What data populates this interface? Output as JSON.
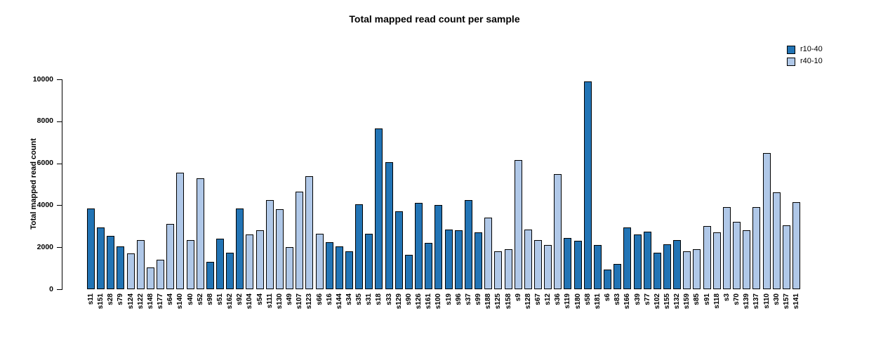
{
  "chart_data": {
    "type": "bar",
    "title": "Total mapped read count per sample",
    "xlabel": "",
    "ylabel": "Total mapped read count",
    "ylim": [
      0,
      10000
    ],
    "yticks": [
      0,
      2000,
      4000,
      6000,
      8000,
      10000
    ],
    "grid": false,
    "legend_position": "top-right",
    "series": [
      {
        "name": "r10-40",
        "color": "#2274b5"
      },
      {
        "name": "r40-10",
        "color": "#b0c8e8"
      }
    ],
    "bars": [
      {
        "label": "s11",
        "value": 3850,
        "series": "r10-40"
      },
      {
        "label": "s151",
        "value": 2950,
        "series": "r10-40"
      },
      {
        "label": "s28",
        "value": 2550,
        "series": "r10-40"
      },
      {
        "label": "s79",
        "value": 2050,
        "series": "r10-40"
      },
      {
        "label": "s124",
        "value": 1700,
        "series": "r40-10"
      },
      {
        "label": "s122",
        "value": 2350,
        "series": "r40-10"
      },
      {
        "label": "s148",
        "value": 1050,
        "series": "r40-10"
      },
      {
        "label": "s177",
        "value": 1400,
        "series": "r40-10"
      },
      {
        "label": "s64",
        "value": 3100,
        "series": "r40-10"
      },
      {
        "label": "s140",
        "value": 5550,
        "series": "r40-10"
      },
      {
        "label": "s40",
        "value": 2350,
        "series": "r40-10"
      },
      {
        "label": "s52",
        "value": 5300,
        "series": "r40-10"
      },
      {
        "label": "s98",
        "value": 1300,
        "series": "r10-40"
      },
      {
        "label": "s51",
        "value": 2400,
        "series": "r10-40"
      },
      {
        "label": "s162",
        "value": 1750,
        "series": "r10-40"
      },
      {
        "label": "s92",
        "value": 3850,
        "series": "r10-40"
      },
      {
        "label": "s104",
        "value": 2600,
        "series": "r40-10"
      },
      {
        "label": "s54",
        "value": 2800,
        "series": "r40-10"
      },
      {
        "label": "s111",
        "value": 4250,
        "series": "r40-10"
      },
      {
        "label": "s130",
        "value": 3800,
        "series": "r40-10"
      },
      {
        "label": "s49",
        "value": 2000,
        "series": "r40-10"
      },
      {
        "label": "s107",
        "value": 4650,
        "series": "r40-10"
      },
      {
        "label": "s123",
        "value": 5400,
        "series": "r40-10"
      },
      {
        "label": "s66",
        "value": 2650,
        "series": "r40-10"
      },
      {
        "label": "s16",
        "value": 2250,
        "series": "r10-40"
      },
      {
        "label": "s144",
        "value": 2050,
        "series": "r10-40"
      },
      {
        "label": "s34",
        "value": 1800,
        "series": "r10-40"
      },
      {
        "label": "s35",
        "value": 4050,
        "series": "r10-40"
      },
      {
        "label": "s31",
        "value": 2650,
        "series": "r10-40"
      },
      {
        "label": "s18",
        "value": 7650,
        "series": "r10-40"
      },
      {
        "label": "s33",
        "value": 6050,
        "series": "r10-40"
      },
      {
        "label": "s129",
        "value": 3700,
        "series": "r10-40"
      },
      {
        "label": "s90",
        "value": 1650,
        "series": "r10-40"
      },
      {
        "label": "s126",
        "value": 4100,
        "series": "r10-40"
      },
      {
        "label": "s161",
        "value": 2200,
        "series": "r10-40"
      },
      {
        "label": "s100",
        "value": 4000,
        "series": "r10-40"
      },
      {
        "label": "s19",
        "value": 2850,
        "series": "r10-40"
      },
      {
        "label": "s96",
        "value": 2800,
        "series": "r10-40"
      },
      {
        "label": "s37",
        "value": 4250,
        "series": "r10-40"
      },
      {
        "label": "s99",
        "value": 2700,
        "series": "r10-40"
      },
      {
        "label": "s188",
        "value": 3400,
        "series": "r40-10"
      },
      {
        "label": "s125",
        "value": 1800,
        "series": "r40-10"
      },
      {
        "label": "s158",
        "value": 1900,
        "series": "r40-10"
      },
      {
        "label": "s9",
        "value": 6150,
        "series": "r40-10"
      },
      {
        "label": "s128",
        "value": 2850,
        "series": "r40-10"
      },
      {
        "label": "s67",
        "value": 2350,
        "series": "r40-10"
      },
      {
        "label": "s12",
        "value": 2100,
        "series": "r40-10"
      },
      {
        "label": "s36",
        "value": 5500,
        "series": "r40-10"
      },
      {
        "label": "s119",
        "value": 2450,
        "series": "r10-40"
      },
      {
        "label": "s180",
        "value": 2300,
        "series": "r10-40"
      },
      {
        "label": "s58",
        "value": 9900,
        "series": "r10-40"
      },
      {
        "label": "s181",
        "value": 2100,
        "series": "r10-40"
      },
      {
        "label": "s6",
        "value": 950,
        "series": "r10-40"
      },
      {
        "label": "s83",
        "value": 1200,
        "series": "r10-40"
      },
      {
        "label": "s166",
        "value": 2950,
        "series": "r10-40"
      },
      {
        "label": "s39",
        "value": 2600,
        "series": "r10-40"
      },
      {
        "label": "s77",
        "value": 2750,
        "series": "r10-40"
      },
      {
        "label": "s102",
        "value": 1750,
        "series": "r10-40"
      },
      {
        "label": "s155",
        "value": 2150,
        "series": "r10-40"
      },
      {
        "label": "s132",
        "value": 2350,
        "series": "r10-40"
      },
      {
        "label": "s159",
        "value": 1800,
        "series": "r40-10"
      },
      {
        "label": "s85",
        "value": 1900,
        "series": "r40-10"
      },
      {
        "label": "s91",
        "value": 3000,
        "series": "r40-10"
      },
      {
        "label": "s118",
        "value": 2700,
        "series": "r40-10"
      },
      {
        "label": "s3",
        "value": 3900,
        "series": "r40-10"
      },
      {
        "label": "s70",
        "value": 3200,
        "series": "r40-10"
      },
      {
        "label": "s139",
        "value": 2800,
        "series": "r40-10"
      },
      {
        "label": "s137",
        "value": 3900,
        "series": "r40-10"
      },
      {
        "label": "s110",
        "value": 6500,
        "series": "r40-10"
      },
      {
        "label": "s30",
        "value": 4600,
        "series": "r40-10"
      },
      {
        "label": "s157",
        "value": 3050,
        "series": "r40-10"
      },
      {
        "label": "s141",
        "value": 4150,
        "series": "r40-10"
      }
    ]
  }
}
